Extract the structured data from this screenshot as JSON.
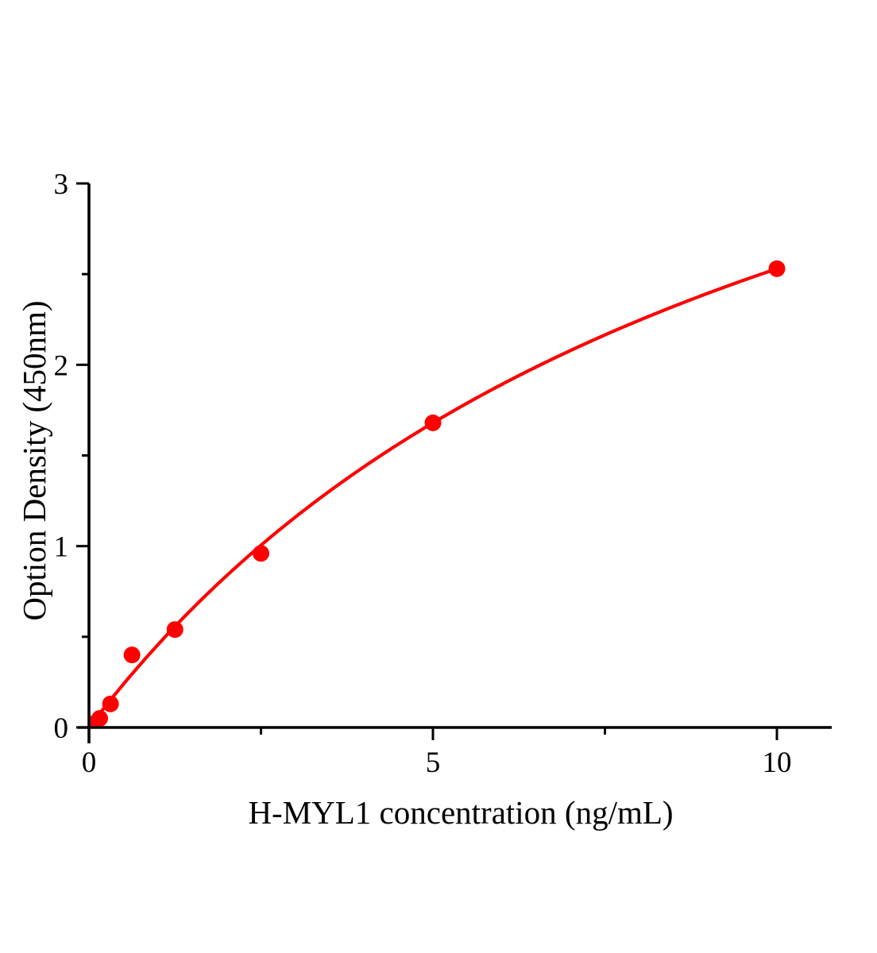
{
  "chart_data": {
    "type": "scatter",
    "title": "",
    "xlabel": "H-MYL1 concentration (ng/mL)",
    "ylabel": "Option Density (450nm)",
    "x": [
      0,
      0.156,
      0.313,
      0.625,
      1.25,
      2.5,
      5,
      10
    ],
    "y": [
      0.02,
      0.05,
      0.13,
      0.4,
      0.54,
      0.96,
      1.68,
      2.53
    ],
    "xlim": [
      0,
      10.8
    ],
    "ylim": [
      0,
      3
    ],
    "x_ticks_major": {
      "values": [
        0,
        5,
        10
      ],
      "labels": [
        "0",
        "5",
        "10"
      ]
    },
    "x_ticks_minor": [
      2.5,
      7.5
    ],
    "y_ticks_major": {
      "values": [
        0,
        1,
        2,
        3
      ],
      "labels": [
        "0",
        "1",
        "2",
        "3"
      ]
    },
    "y_ticks_minor": [
      0.5,
      1.5,
      2.5
    ],
    "fit_curve": {
      "model": "saturation",
      "a": 5.12,
      "b": 10.24
    },
    "marker_color": "#ff0000",
    "line_color": "#ff0000",
    "axis_color": "#000000",
    "grid": false,
    "legend": "none"
  }
}
